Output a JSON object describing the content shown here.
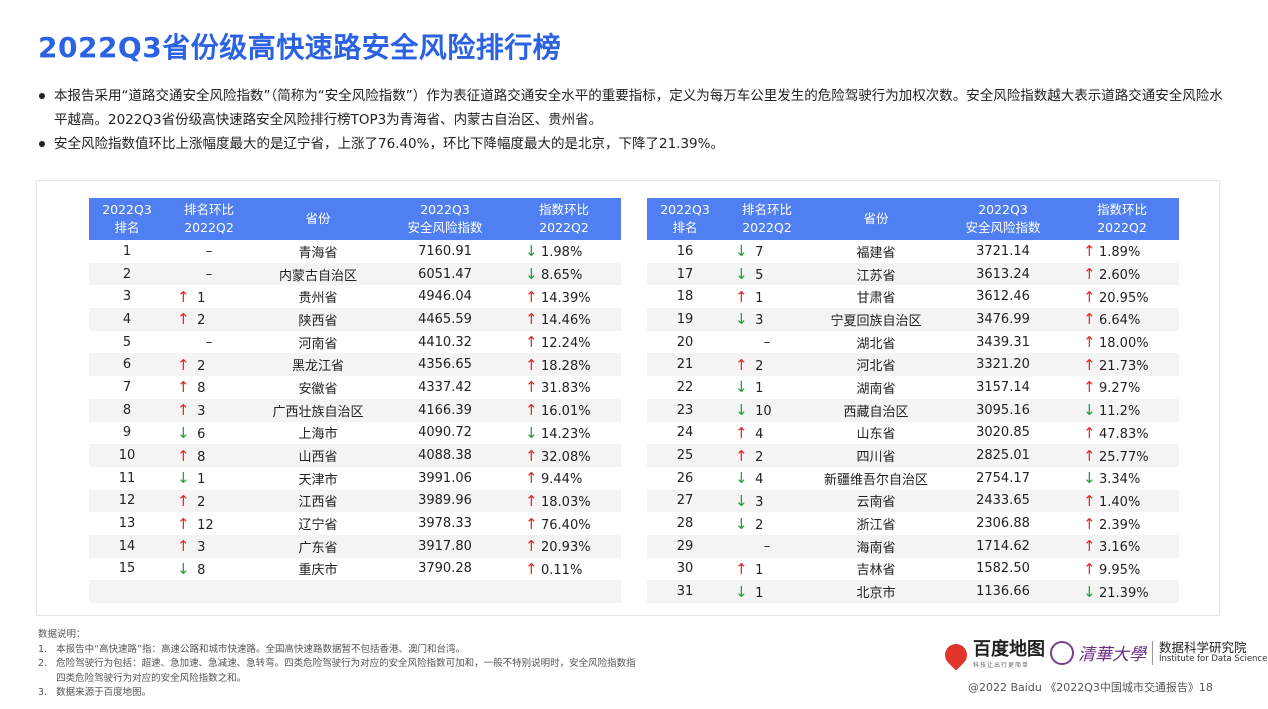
{
  "title": "2022Q3省份级高快速路安全风险排行榜",
  "bullets": [
    "本报告采用“道路交通安全风险指数”（简称为“安全风险指数”）作为表征道路交通安全水平的重要指标，定义为每万车公里发生的危险驾驶行为加权次数。安全风险指数越大表示道路交通安全风险水平越高。2022Q3省份级高快速路安全风险排行榜TOP3为青海省、内蒙古自治区、贵州省。",
    "安全风险指数值环比上涨幅度最大的是辽宁省，上涨了76.40%，环比下降幅度最大的是北京，下降了21.39%。"
  ],
  "table": {
    "headers": [
      [
        "2022Q3",
        "排名"
      ],
      [
        "排名环比",
        "2022Q2"
      ],
      [
        "省份"
      ],
      [
        "2022Q3",
        "安全风险指数"
      ],
      [
        "指数环比",
        "2022Q2"
      ]
    ],
    "left_rows": [
      {
        "rank": "1",
        "rank_dir": "none",
        "rank_change": "–",
        "province": "青海省",
        "index": "7160.91",
        "idx_dir": "down",
        "idx_change": "1.98%"
      },
      {
        "rank": "2",
        "rank_dir": "none",
        "rank_change": "–",
        "province": "内蒙古自治区",
        "index": "6051.47",
        "idx_dir": "down",
        "idx_change": "8.65%"
      },
      {
        "rank": "3",
        "rank_dir": "up",
        "rank_change": "1",
        "province": "贵州省",
        "index": "4946.04",
        "idx_dir": "up",
        "idx_change": "14.39%"
      },
      {
        "rank": "4",
        "rank_dir": "up",
        "rank_change": "2",
        "province": "陕西省",
        "index": "4465.59",
        "idx_dir": "up",
        "idx_change": "14.46%"
      },
      {
        "rank": "5",
        "rank_dir": "none",
        "rank_change": "–",
        "province": "河南省",
        "index": "4410.32",
        "idx_dir": "up",
        "idx_change": "12.24%"
      },
      {
        "rank": "6",
        "rank_dir": "up",
        "rank_change": "2",
        "province": "黑龙江省",
        "index": "4356.65",
        "idx_dir": "up",
        "idx_change": "18.28%"
      },
      {
        "rank": "7",
        "rank_dir": "up",
        "rank_change": "8",
        "province": "安徽省",
        "index": "4337.42",
        "idx_dir": "up",
        "idx_change": "31.83%"
      },
      {
        "rank": "8",
        "rank_dir": "up",
        "rank_change": "3",
        "province": "广西壮族自治区",
        "index": "4166.39",
        "idx_dir": "up",
        "idx_change": "16.01%"
      },
      {
        "rank": "9",
        "rank_dir": "down",
        "rank_change": "6",
        "province": "上海市",
        "index": "4090.72",
        "idx_dir": "down",
        "idx_change": "14.23%"
      },
      {
        "rank": "10",
        "rank_dir": "up",
        "rank_change": "8",
        "province": "山西省",
        "index": "4088.38",
        "idx_dir": "up",
        "idx_change": "32.08%"
      },
      {
        "rank": "11",
        "rank_dir": "down",
        "rank_change": "1",
        "province": "天津市",
        "index": "3991.06",
        "idx_dir": "up",
        "idx_change": "9.44%"
      },
      {
        "rank": "12",
        "rank_dir": "up",
        "rank_change": "2",
        "province": "江西省",
        "index": "3989.96",
        "idx_dir": "up",
        "idx_change": "18.03%"
      },
      {
        "rank": "13",
        "rank_dir": "up",
        "rank_change": "12",
        "province": "辽宁省",
        "index": "3978.33",
        "idx_dir": "up",
        "idx_change": "76.40%"
      },
      {
        "rank": "14",
        "rank_dir": "up",
        "rank_change": "3",
        "province": "广东省",
        "index": "3917.80",
        "idx_dir": "up",
        "idx_change": "20.93%"
      },
      {
        "rank": "15",
        "rank_dir": "down",
        "rank_change": "8",
        "province": "重庆市",
        "index": "3790.28",
        "idx_dir": "up",
        "idx_change": "0.11%"
      },
      {
        "rank": "",
        "rank_dir": "none",
        "rank_change": "",
        "province": "",
        "index": "",
        "idx_dir": "none",
        "idx_change": ""
      }
    ],
    "right_rows": [
      {
        "rank": "16",
        "rank_dir": "down",
        "rank_change": "7",
        "province": "福建省",
        "index": "3721.14",
        "idx_dir": "up",
        "idx_change": "1.89%"
      },
      {
        "rank": "17",
        "rank_dir": "down",
        "rank_change": "5",
        "province": "江苏省",
        "index": "3613.24",
        "idx_dir": "up",
        "idx_change": "2.60%"
      },
      {
        "rank": "18",
        "rank_dir": "up",
        "rank_change": "1",
        "province": "甘肃省",
        "index": "3612.46",
        "idx_dir": "up",
        "idx_change": "20.95%"
      },
      {
        "rank": "19",
        "rank_dir": "down",
        "rank_change": "3",
        "province": "宁夏回族自治区",
        "index": "3476.99",
        "idx_dir": "up",
        "idx_change": "6.64%"
      },
      {
        "rank": "20",
        "rank_dir": "none",
        "rank_change": "–",
        "province": "湖北省",
        "index": "3439.31",
        "idx_dir": "up",
        "idx_change": "18.00%"
      },
      {
        "rank": "21",
        "rank_dir": "up",
        "rank_change": "2",
        "province": "河北省",
        "index": "3321.20",
        "idx_dir": "up",
        "idx_change": "21.73%"
      },
      {
        "rank": "22",
        "rank_dir": "down",
        "rank_change": "1",
        "province": "湖南省",
        "index": "3157.14",
        "idx_dir": "up",
        "idx_change": "9.27%"
      },
      {
        "rank": "23",
        "rank_dir": "down",
        "rank_change": "10",
        "province": "西藏自治区",
        "index": "3095.16",
        "idx_dir": "down",
        "idx_change": "11.2%"
      },
      {
        "rank": "24",
        "rank_dir": "up",
        "rank_change": "4",
        "province": "山东省",
        "index": "3020.85",
        "idx_dir": "up",
        "idx_change": "47.83%"
      },
      {
        "rank": "25",
        "rank_dir": "up",
        "rank_change": "2",
        "province": "四川省",
        "index": "2825.01",
        "idx_dir": "up",
        "idx_change": "25.77%"
      },
      {
        "rank": "26",
        "rank_dir": "down",
        "rank_change": "4",
        "province": "新疆维吾尔自治区",
        "index": "2754.17",
        "idx_dir": "down",
        "idx_change": "3.34%"
      },
      {
        "rank": "27",
        "rank_dir": "down",
        "rank_change": "3",
        "province": "云南省",
        "index": "2433.65",
        "idx_dir": "up",
        "idx_change": "1.40%"
      },
      {
        "rank": "28",
        "rank_dir": "down",
        "rank_change": "2",
        "province": "浙江省",
        "index": "2306.88",
        "idx_dir": "up",
        "idx_change": "2.39%"
      },
      {
        "rank": "29",
        "rank_dir": "none",
        "rank_change": "–",
        "province": "海南省",
        "index": "1714.62",
        "idx_dir": "up",
        "idx_change": "3.16%"
      },
      {
        "rank": "30",
        "rank_dir": "up",
        "rank_change": "1",
        "province": "吉林省",
        "index": "1582.50",
        "idx_dir": "up",
        "idx_change": "9.95%"
      },
      {
        "rank": "31",
        "rank_dir": "down",
        "rank_change": "1",
        "province": "北京市",
        "index": "1136.66",
        "idx_dir": "down",
        "idx_change": "21.39%"
      }
    ]
  },
  "notes": [
    "数据说明：",
    "1.   本报告中“高快速路”指：高速公路和城市快速路。全国高快速路数据暂不包括香港、澳门和台湾。",
    "2.   危险驾驶行为包括：超速、急加速、急减速、急转弯。四类危险驾驶行为对应的安全风险指数可加和，一般不特别说明时，安全风险指数指",
    "      四类危险驾驶行为对应的安全风险指数之和。",
    "3.   数据来源于百度地图。"
  ],
  "logos": {
    "baidu": "百度地图",
    "baidu_sub": "科技让出行更简单",
    "tsinghua": "清華大學",
    "institute_cn": "数据科学研究院",
    "institute_en": "Institute for Data Science"
  },
  "footer": "@2022 Baidu 《2022Q3中国城市交通报告》18",
  "colors": {
    "accent": "#2a62e3",
    "header_bg": "#4f7ff0",
    "up": "#e02b20",
    "down": "#1e9e3b"
  }
}
